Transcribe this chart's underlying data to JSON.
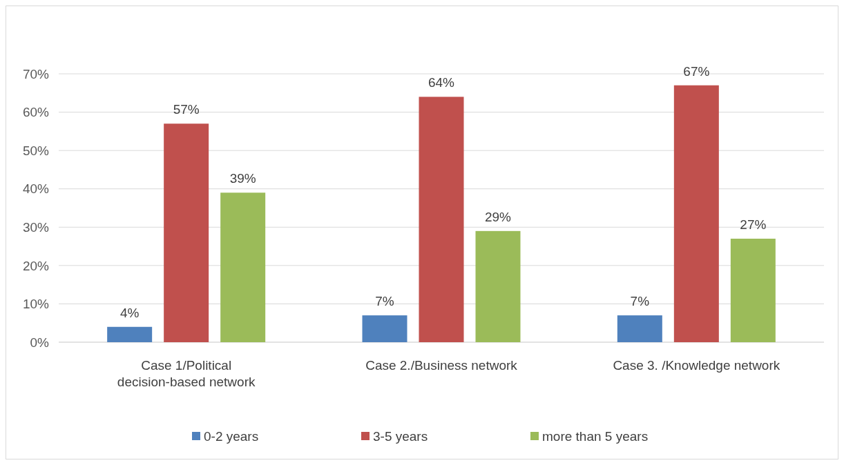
{
  "chart_data": {
    "type": "bar",
    "categories": [
      "Case 1/Political decision-based network",
      "Case 2./Business network",
      "Case 3. /Knowledge network"
    ],
    "series": [
      {
        "name": "0-2 years",
        "color": "#4f81bd",
        "values": [
          4,
          7,
          7
        ],
        "value_labels": [
          "4%",
          "7%",
          "7%"
        ]
      },
      {
        "name": "3-5 years",
        "color": "#c0504d",
        "values": [
          57,
          64,
          67
        ],
        "value_labels": [
          "57%",
          "64%",
          "67%"
        ]
      },
      {
        "name": "more than 5 years",
        "color": "#9bbb59",
        "values": [
          39,
          29,
          27
        ],
        "value_labels": [
          "39%",
          "29%",
          "27%"
        ]
      }
    ],
    "ylim": [
      0,
      70
    ],
    "yticks": [
      {
        "value": 0,
        "label": "0%"
      },
      {
        "value": 10,
        "label": "10%"
      },
      {
        "value": 20,
        "label": "20%"
      },
      {
        "value": 30,
        "label": "30%"
      },
      {
        "value": 40,
        "label": "40%"
      },
      {
        "value": 50,
        "label": "50%"
      },
      {
        "value": 60,
        "label": "60%"
      },
      {
        "value": 70,
        "label": "70%"
      }
    ],
    "grid": "y",
    "legend": "bottom"
  }
}
